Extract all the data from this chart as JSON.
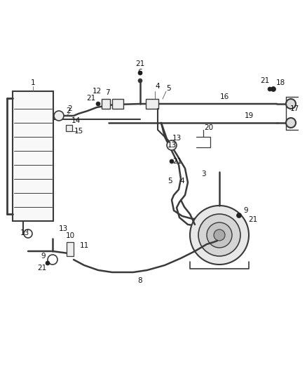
{
  "background_color": "#ffffff",
  "line_color": "#3a3a3a",
  "figsize": [
    4.38,
    5.33
  ],
  "dpi": 100,
  "font_size": 7.5
}
